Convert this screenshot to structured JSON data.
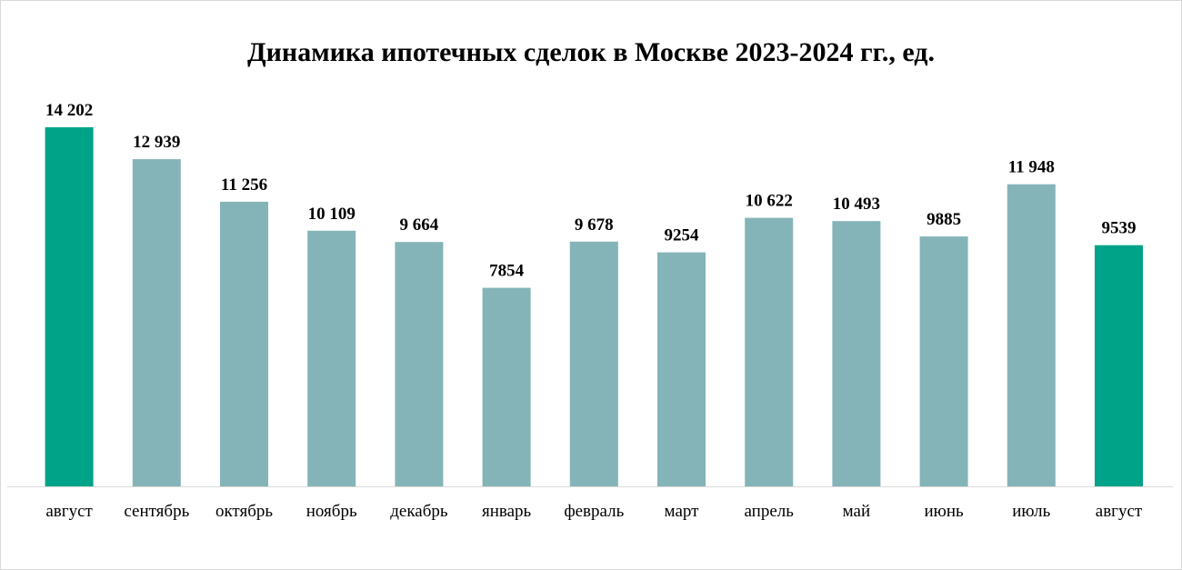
{
  "chart_data": {
    "type": "bar",
    "title": "Динамика ипотечных сделок в Москве 2023-2024 гг., ед.",
    "xlabel": "",
    "ylabel": "",
    "ylim": [
      0,
      14202
    ],
    "categories": [
      "август",
      "сентябрь",
      "октябрь",
      "ноябрь",
      "декабрь",
      "январь",
      "февраль",
      "март",
      "апрель",
      "май",
      "июнь",
      "июль",
      "август"
    ],
    "values": [
      14202,
      12939,
      11256,
      10109,
      9664,
      7854,
      9678,
      9254,
      10622,
      10493,
      9885,
      11948,
      9539
    ],
    "data_labels": [
      "14 202",
      "12 939",
      "11 256",
      "10 109",
      "9 664",
      "7854",
      "9 678",
      "9254",
      "10 622",
      "10 493",
      "9885",
      "11 948",
      "9539"
    ],
    "highlighted": [
      0,
      12
    ],
    "colors": {
      "bar": "#84b4b8",
      "highlight": "#00a387",
      "axis": "#d9d9d9"
    },
    "grid": false,
    "legend": "none"
  }
}
